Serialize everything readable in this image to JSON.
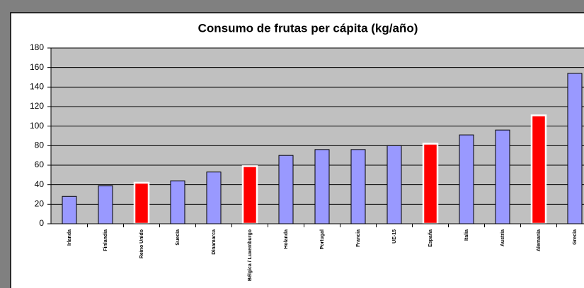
{
  "chart_data": {
    "type": "bar",
    "title": "Consumo de frutas per cápita (kg/año)",
    "categories": [
      "Irlanda",
      "Finlandia",
      "Reino Unido",
      "Suecia",
      "Dinamarca",
      "Bélgica / Luxemburgo",
      "Holanda",
      "Portugal",
      "Francia",
      "UE-15",
      "España",
      "Italia",
      "Austria",
      "Alemania",
      "Grecia"
    ],
    "values": [
      28,
      39,
      42,
      44,
      53,
      59,
      70,
      76,
      76,
      80,
      82,
      91,
      96,
      111,
      154
    ],
    "colors": [
      "#9999ff",
      "#9999ff",
      "#ff0000",
      "#9999ff",
      "#9999ff",
      "#ff0000",
      "#9999ff",
      "#9999ff",
      "#9999ff",
      "#9999ff",
      "#ff0000",
      "#9999ff",
      "#9999ff",
      "#ff0000",
      "#9999ff"
    ],
    "ylim": [
      0,
      180
    ],
    "yticks": [
      0,
      20,
      40,
      60,
      80,
      100,
      120,
      140,
      160,
      180
    ],
    "grid": true
  }
}
